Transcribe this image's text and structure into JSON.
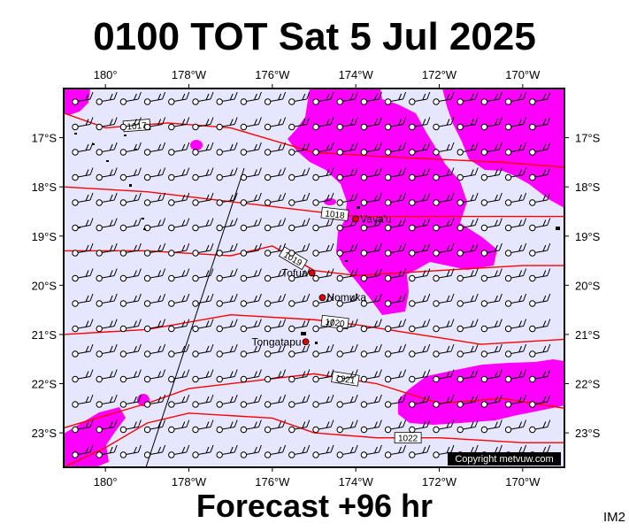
{
  "title": "0100 TOT Sat 5 Jul 2025",
  "footer": "Forecast +96 hr",
  "code": "IM2",
  "copyright": "Copyright metvuw.com",
  "map": {
    "lon_range": [
      -181.0,
      -169.0
    ],
    "lat_range": [
      -23.7,
      -16.0
    ],
    "lon_ticks": [
      {
        "value": -180,
        "label": "180°"
      },
      {
        "value": -178,
        "label": "178°W"
      },
      {
        "value": -176,
        "label": "176°W"
      },
      {
        "value": -174,
        "label": "174°W"
      },
      {
        "value": -172,
        "label": "172°W"
      },
      {
        "value": -170,
        "label": "170°W"
      }
    ],
    "lat_ticks": [
      {
        "value": -17,
        "label": "17°S"
      },
      {
        "value": -18,
        "label": "18°S"
      },
      {
        "value": -19,
        "label": "19°S"
      },
      {
        "value": -20,
        "label": "20°S"
      },
      {
        "value": -21,
        "label": "21°S"
      },
      {
        "value": -22,
        "label": "22°S"
      },
      {
        "value": -23,
        "label": "23°S"
      }
    ],
    "colors": {
      "background": "#e6e6ff",
      "rain": "#ff00ff",
      "isobar": "#ff0000"
    },
    "isobars": [
      {
        "label": "1017",
        "points": [
          [
            -181,
            -16.5
          ],
          [
            -180,
            -16.8
          ],
          [
            -178.5,
            -16.7
          ],
          [
            -177,
            -16.8
          ],
          [
            -175,
            -17.3
          ],
          [
            -173,
            -17.4
          ],
          [
            -170.5,
            -17.5
          ],
          [
            -169,
            -17.6
          ]
        ]
      },
      {
        "label": "1018",
        "points": [
          [
            -181,
            -18.0
          ],
          [
            -179,
            -18.1
          ],
          [
            -177,
            -18.3
          ],
          [
            -175,
            -18.5
          ],
          [
            -174,
            -18.6
          ],
          [
            -172,
            -18.6
          ],
          [
            -170,
            -18.6
          ],
          [
            -169,
            -18.6
          ]
        ]
      },
      {
        "label": "1019",
        "points": [
          [
            -181,
            -19.3
          ],
          [
            -179,
            -19.3
          ],
          [
            -177,
            -19.4
          ],
          [
            -176,
            -19.2
          ],
          [
            -175,
            -19.7
          ],
          [
            -174,
            -19.8
          ],
          [
            -172,
            -19.7
          ],
          [
            -170,
            -19.6
          ],
          [
            -169,
            -19.6
          ]
        ]
      },
      {
        "label": "1020",
        "points": [
          [
            -181,
            -21.0
          ],
          [
            -179,
            -20.9
          ],
          [
            -177,
            -20.6
          ],
          [
            -175,
            -20.7
          ],
          [
            -174,
            -20.8
          ],
          [
            -172.5,
            -21.0
          ],
          [
            -171,
            -21.2
          ],
          [
            -169,
            -21.1
          ]
        ]
      },
      {
        "label": "1021",
        "points": [
          [
            -181,
            -22.9
          ],
          [
            -179,
            -22.4
          ],
          [
            -178,
            -22.1
          ],
          [
            -176,
            -21.9
          ],
          [
            -175,
            -21.8
          ],
          [
            -173.5,
            -22.0
          ],
          [
            -172,
            -22.4
          ],
          [
            -170.5,
            -22.3
          ],
          [
            -169,
            -22.5
          ]
        ]
      },
      {
        "label": "1022",
        "points": [
          [
            -181,
            -23.7
          ],
          [
            -180,
            -23.3
          ],
          [
            -179,
            -22.8
          ],
          [
            -178,
            -22.6
          ],
          [
            -176,
            -22.7
          ],
          [
            -175,
            -23.0
          ],
          [
            -173.5,
            -23.1
          ],
          [
            -172,
            -23.1
          ],
          [
            -170,
            -23.2
          ],
          [
            -169,
            -23.2
          ]
        ]
      }
    ],
    "places": [
      {
        "name": "Vava'u",
        "lon": -174.0,
        "lat": -18.65
      },
      {
        "name": "Tofua",
        "lon": -175.05,
        "lat": -19.75
      },
      {
        "name": "Nomuka",
        "lon": -174.8,
        "lat": -20.25
      },
      {
        "name": "Tongatapu",
        "lon": -175.2,
        "lat": -21.15
      }
    ]
  }
}
